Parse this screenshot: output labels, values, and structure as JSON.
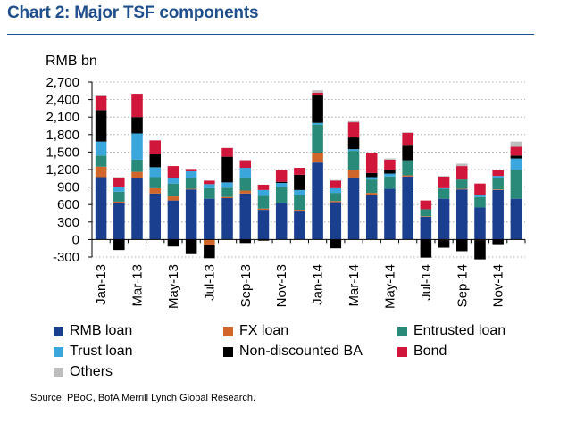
{
  "chart_data": {
    "type": "bar",
    "stacked": true,
    "title": "Chart 2: Major TSF components",
    "ylabel": "RMB bn",
    "ylim": [
      -300,
      2700
    ],
    "yticks": [
      2700,
      2400,
      2100,
      1800,
      1500,
      1200,
      900,
      600,
      300,
      0,
      -300
    ],
    "ytick_labels": [
      "2,700",
      "2,400",
      "2,100",
      "1,800",
      "1,500",
      "1,200",
      "900",
      "600",
      "300",
      "0",
      "-300"
    ],
    "categories": [
      "Jan-13",
      "Feb-13",
      "Mar-13",
      "Apr-13",
      "May-13",
      "Jun-13",
      "Jul-13",
      "Aug-13",
      "Sep-13",
      "Oct-13",
      "Nov-13",
      "Dec-13",
      "Jan-14",
      "Feb-14",
      "Mar-14",
      "Apr-14",
      "May-14",
      "Jun-14",
      "Jul-14",
      "Aug-14",
      "Sep-14",
      "Oct-14",
      "Nov-14",
      "Dec-14"
    ],
    "x_tick_labels": [
      "Jan-13",
      "",
      "Mar-13",
      "",
      "May-13",
      "",
      "Jul-13",
      "",
      "Sep-13",
      "",
      "Nov-13",
      "",
      "Jan-14",
      "",
      "Mar-14",
      "",
      "May-14",
      "",
      "Jul-14",
      "",
      "Sep-14",
      "",
      "Nov-14",
      ""
    ],
    "series": [
      {
        "name": "RMB loan",
        "color": "#1b3f8f",
        "values": [
          1070,
          620,
          1060,
          790,
          670,
          860,
          700,
          710,
          790,
          510,
          620,
          480,
          1320,
          640,
          1050,
          770,
          870,
          1080,
          390,
          700,
          860,
          550,
          850,
          700
        ]
      },
      {
        "name": "FX loan",
        "color": "#d0662a",
        "values": [
          180,
          30,
          100,
          90,
          70,
          10,
          -100,
          20,
          50,
          20,
          0,
          30,
          170,
          20,
          150,
          30,
          0,
          20,
          10,
          -10,
          10,
          -10,
          10,
          0
        ]
      },
      {
        "name": "Entrusted loan",
        "color": "#2a8a7a",
        "values": [
          190,
          170,
          210,
          190,
          220,
          190,
          180,
          160,
          210,
          220,
          280,
          250,
          480,
          140,
          320,
          230,
          210,
          260,
          120,
          170,
          160,
          180,
          200,
          500
        ]
      },
      {
        "name": "Trust loan",
        "color": "#3ba6dc",
        "values": [
          240,
          80,
          450,
          170,
          90,
          110,
          70,
          90,
          180,
          100,
          70,
          90,
          30,
          80,
          30,
          40,
          50,
          0,
          0,
          10,
          0,
          30,
          30,
          190
        ]
      },
      {
        "name": "Non-discounted BA",
        "color": "#000000",
        "values": [
          540,
          -180,
          280,
          220,
          -120,
          -250,
          -220,
          440,
          -60,
          -20,
          20,
          260,
          470,
          -150,
          200,
          70,
          70,
          250,
          -310,
          -130,
          -200,
          -330,
          -80,
          50
        ]
      },
      {
        "name": "Bond",
        "color": "#d0163a",
        "values": [
          240,
          160,
          400,
          240,
          210,
          40,
          60,
          150,
          130,
          90,
          200,
          120,
          50,
          130,
          260,
          350,
          170,
          220,
          150,
          200,
          230,
          200,
          100,
          150
        ]
      },
      {
        "name": "Others",
        "color": "#bdbdbd",
        "values": [
          20,
          10,
          0,
          0,
          0,
          0,
          0,
          0,
          0,
          0,
          0,
          0,
          40,
          10,
          20,
          0,
          20,
          10,
          0,
          10,
          40,
          0,
          0,
          90
        ]
      }
    ],
    "legend": [
      {
        "label": "RMB loan",
        "color": "#1b3f8f"
      },
      {
        "label": "FX loan",
        "color": "#d0662a"
      },
      {
        "label": "Entrusted loan",
        "color": "#2a8a7a"
      },
      {
        "label": "Trust loan",
        "color": "#3ba6dc"
      },
      {
        "label": "Non-discounted BA",
        "color": "#000000"
      },
      {
        "label": "Bond",
        "color": "#d0163a"
      },
      {
        "label": "Others",
        "color": "#bdbdbd"
      }
    ],
    "grid": true,
    "source": "Source: PBoC, BofA Merrill Lynch Global Research."
  }
}
